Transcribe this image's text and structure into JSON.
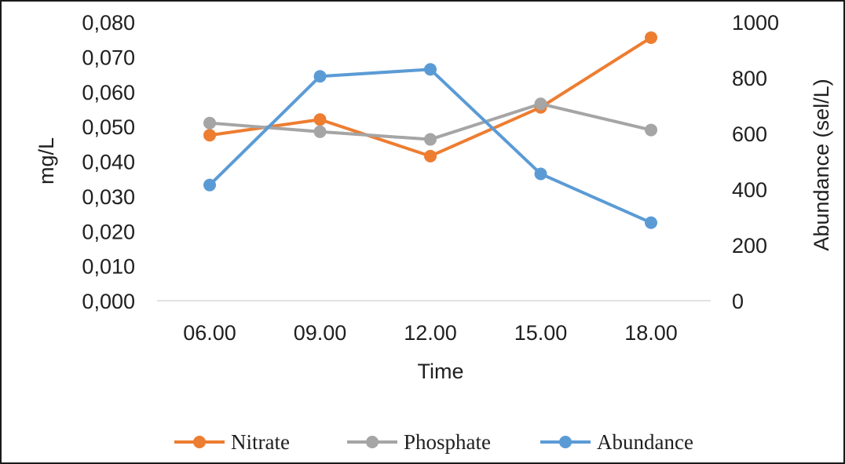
{
  "chart_data": {
    "type": "line",
    "categories": [
      "06.00",
      "09.00",
      "12.00",
      "15.00",
      "18.00"
    ],
    "series": [
      {
        "name": "Nitrate",
        "axis": "left",
        "color": "#ed7d31",
        "values": [
          0.0475,
          0.052,
          0.0415,
          0.0555,
          0.0755
        ]
      },
      {
        "name": "Phosphate",
        "axis": "left",
        "color": "#a5a5a5",
        "values": [
          0.051,
          0.0485,
          0.0463,
          0.0565,
          0.049
        ]
      },
      {
        "name": "Abundance",
        "axis": "right",
        "color": "#5b9bd5",
        "values": [
          415,
          805,
          830,
          455,
          280
        ]
      }
    ],
    "xlabel": "Time",
    "ylabel_left": "mg/L",
    "ylabel_right": "Abundance (sel/L)",
    "ylim_left": [
      0,
      0.08
    ],
    "ylim_right": [
      0,
      1000
    ],
    "yticks_left": [
      "0,000",
      "0,010",
      "0,020",
      "0,030",
      "0,040",
      "0,050",
      "0,060",
      "0,070",
      "0,080"
    ],
    "yticks_right": [
      "0",
      "200",
      "400",
      "600",
      "800",
      "1000"
    ],
    "grid": false,
    "legend_position": "bottom"
  }
}
